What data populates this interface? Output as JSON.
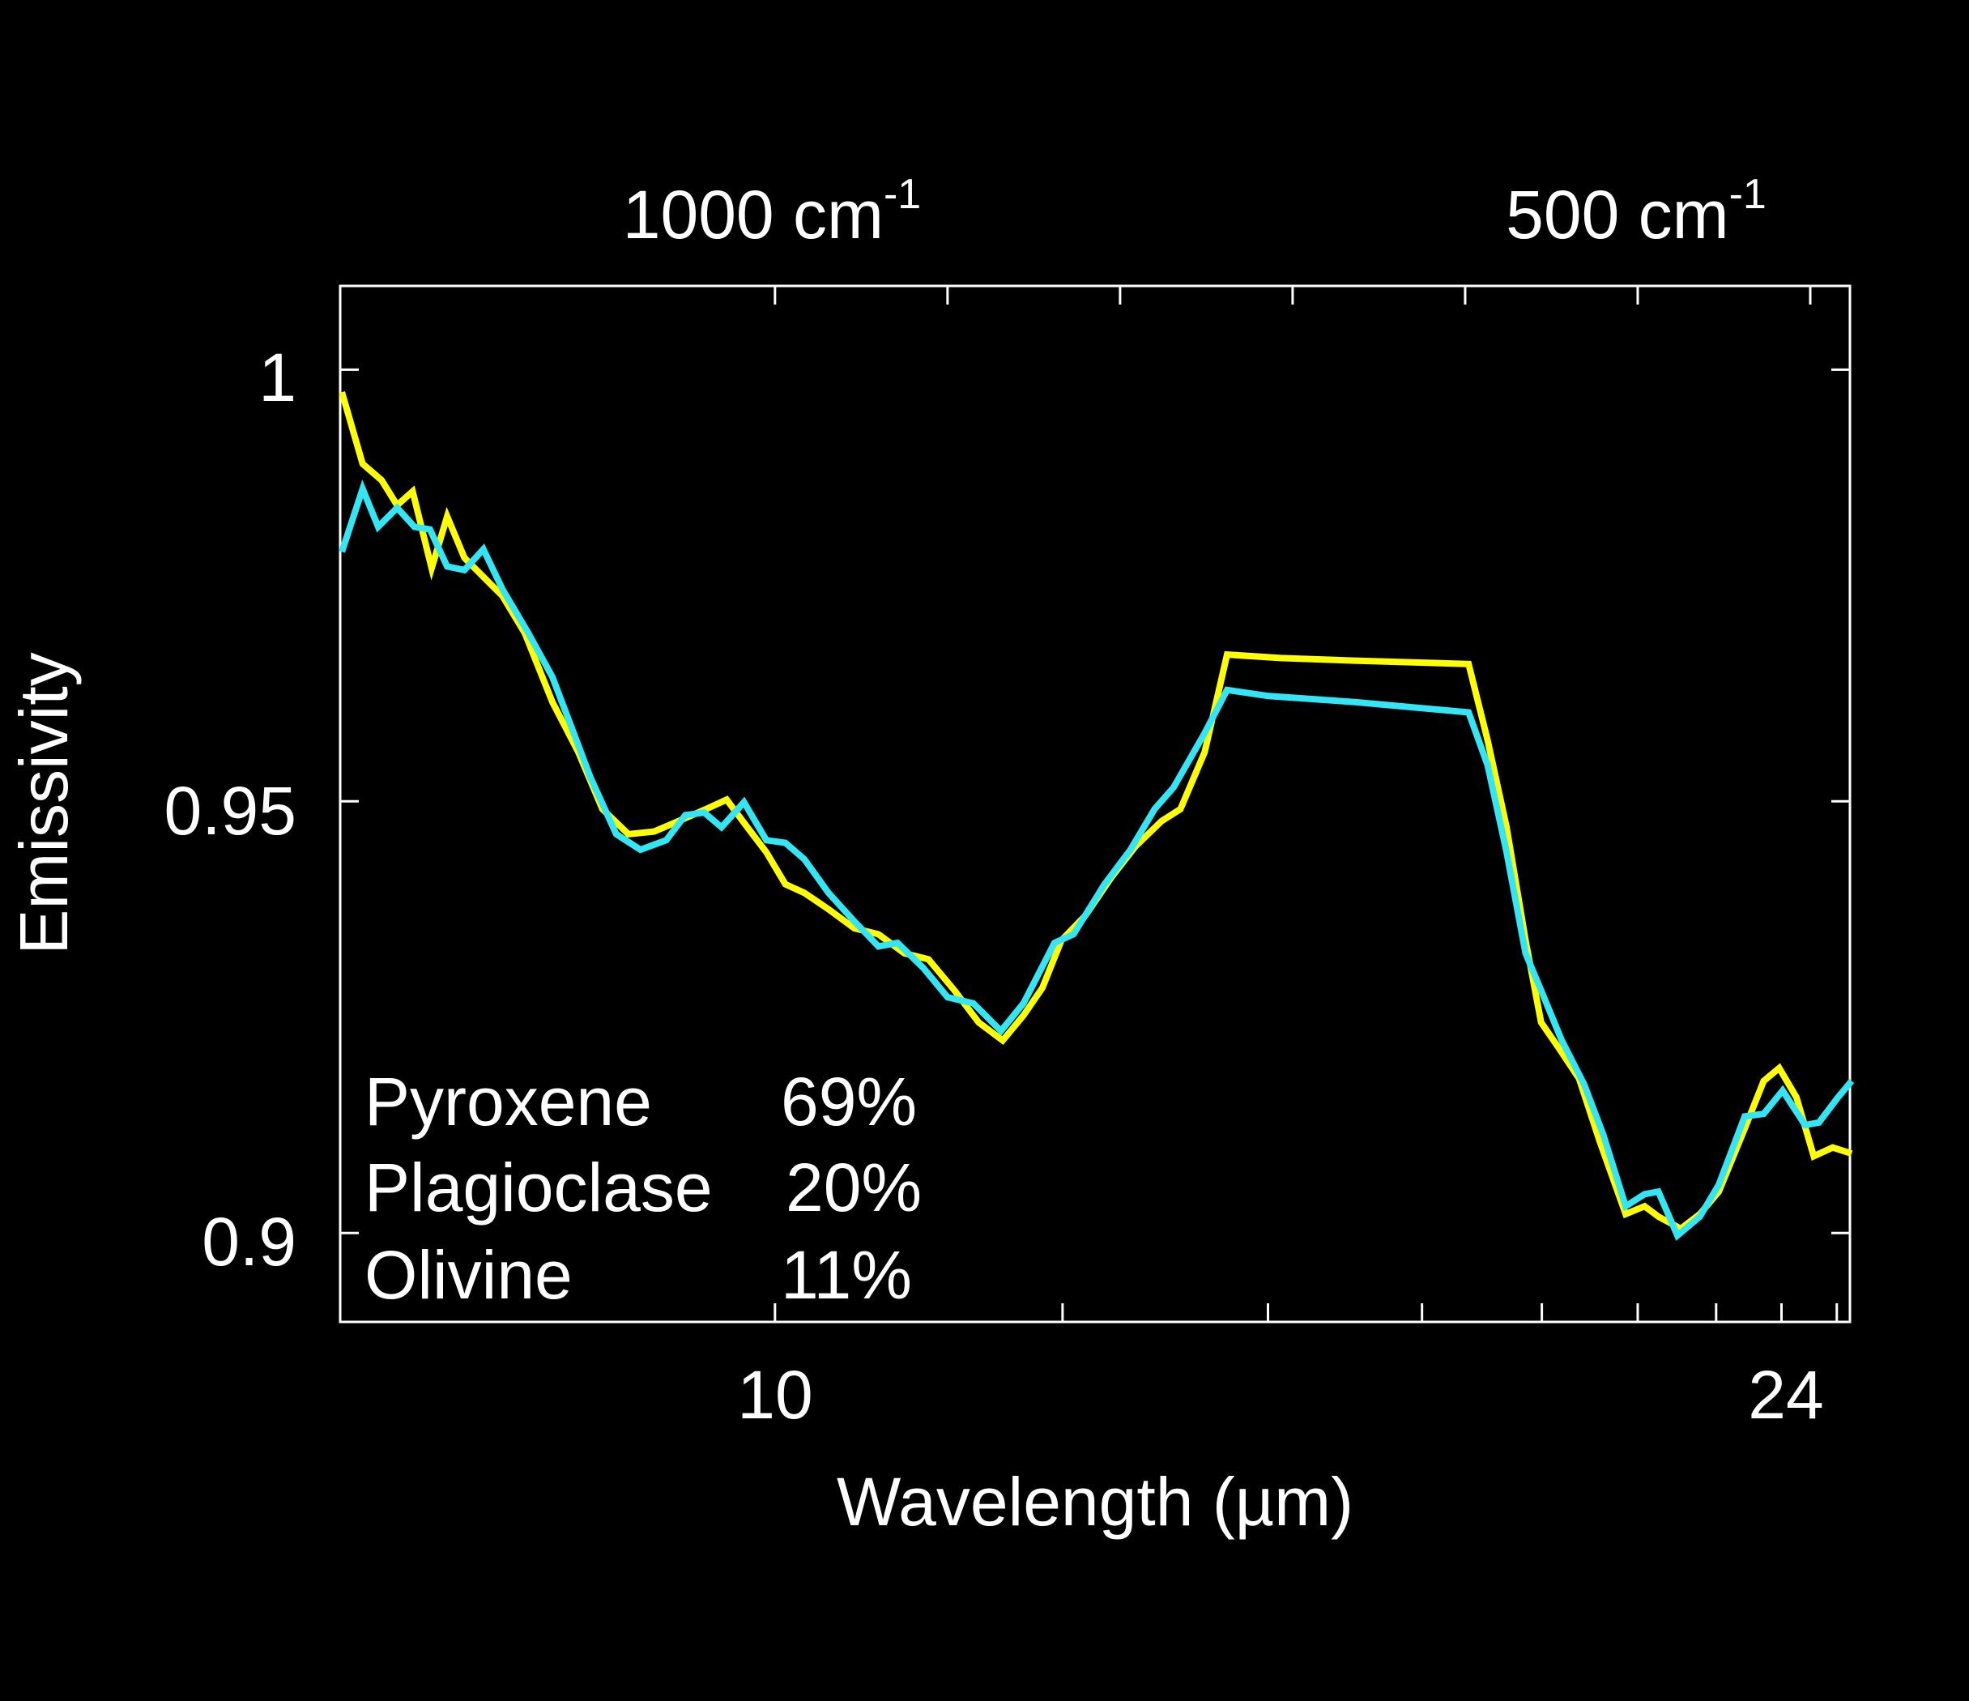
{
  "chart_data": {
    "type": "line",
    "title": "",
    "xlabel": "Wavelength (µm)",
    "ylabel": "Emissivity",
    "x_unit": "cm-1 (wavenumber; axis linear in wavenumber)",
    "xlim": [
      1252,
      377
    ],
    "ylim": [
      0.8897,
      1.0097
    ],
    "grid": false,
    "bottom_axis": {
      "tick_values_um": [
        10,
        12,
        14,
        16,
        18,
        20,
        22,
        24,
        26
      ],
      "tick_labels": [
        {
          "value": 10,
          "label": "10"
        },
        {
          "value": 24,
          "label": "24"
        }
      ]
    },
    "top_axis": {
      "tick_values_cm1": [
        1000,
        900,
        800,
        700,
        600,
        500,
        400
      ],
      "tick_labels": [
        {
          "value": 1000,
          "base": "1000 cm",
          "sup": "-1"
        },
        {
          "value": 500,
          "base": "500 cm",
          "sup": "-1"
        }
      ]
    },
    "y_ticks": [
      {
        "value": 1.0,
        "label": "1"
      },
      {
        "value": 0.95,
        "label": "0.95"
      },
      {
        "value": 0.9,
        "label": "0.9"
      }
    ],
    "legend": {
      "placement": "bottom-left",
      "entries": [
        {
          "name": "Pyroxene",
          "value": "69%"
        },
        {
          "name": "Plagioclase",
          "value": "20%"
        },
        {
          "name": "Olivine",
          "value": "11%"
        }
      ]
    },
    "series": [
      {
        "color": "#ffff00",
        "x": [
          1251,
          1239,
          1228,
          1219,
          1210,
          1199,
          1190,
          1180,
          1169,
          1158,
          1145,
          1129,
          1114,
          1100,
          1085,
          1070,
          1056,
          1040,
          1028,
          1016,
          1005,
          994,
          983,
          969,
          954,
          940,
          925,
          911,
          896,
          882,
          868,
          856,
          845,
          834,
          820,
          805,
          791,
          776,
          765,
          751,
          738,
          707,
          664,
          598,
          587,
          576,
          565,
          556,
          546,
          534,
          522,
          507,
          496,
          488,
          475,
          464,
          453,
          438,
          427,
          418,
          408,
          398,
          387,
          376
        ],
        "y": [
          0.9974,
          0.9891,
          0.9872,
          0.9843,
          0.9859,
          0.977,
          0.983,
          0.9782,
          0.976,
          0.9738,
          0.9695,
          0.9615,
          0.9557,
          0.9491,
          0.9462,
          0.9465,
          0.9477,
          0.9491,
          0.9502,
          0.947,
          0.9441,
          0.9404,
          0.9394,
          0.9375,
          0.9353,
          0.9346,
          0.9324,
          0.9317,
          0.9281,
          0.9244,
          0.9223,
          0.9252,
          0.9284,
          0.9339,
          0.9368,
          0.9412,
          0.9448,
          0.9477,
          0.9491,
          0.9557,
          0.967,
          0.9666,
          0.9663,
          0.9659,
          0.9571,
          0.947,
          0.9339,
          0.9244,
          0.9215,
          0.9179,
          0.9106,
          0.9022,
          0.9031,
          0.9019,
          0.9005,
          0.9022,
          0.9048,
          0.9121,
          0.9176,
          0.9191,
          0.9157,
          0.9089,
          0.9099,
          0.9092
        ]
      },
      {
        "color": "#33e6f5",
        "x": [
          1251,
          1239,
          1230,
          1219,
          1209,
          1200,
          1190,
          1180,
          1169,
          1158,
          1143,
          1129,
          1118,
          1107,
          1092,
          1078,
          1063,
          1052,
          1041,
          1031,
          1018,
          1005,
          994,
          983,
          969,
          954,
          940,
          929,
          914,
          900,
          885,
          869,
          856,
          838,
          827,
          809,
          794,
          780,
          769,
          751,
          738,
          714,
          664,
          598,
          587,
          576,
          565,
          556,
          544,
          531,
          520,
          507,
          496,
          488,
          477,
          464,
          453,
          438,
          427,
          416,
          403,
          395,
          384,
          376
        ],
        "y": [
          0.9789,
          0.9862,
          0.9818,
          0.984,
          0.9818,
          0.9815,
          0.9772,
          0.9768,
          0.9792,
          0.9746,
          0.9695,
          0.9644,
          0.9586,
          0.9528,
          0.9462,
          0.9444,
          0.9455,
          0.9484,
          0.9487,
          0.947,
          0.9499,
          0.9455,
          0.9452,
          0.9433,
          0.9394,
          0.9361,
          0.9332,
          0.9336,
          0.9307,
          0.9273,
          0.9266,
          0.9234,
          0.9266,
          0.9336,
          0.9346,
          0.9404,
          0.9444,
          0.9491,
          0.9516,
          0.9579,
          0.9629,
          0.9622,
          0.9615,
          0.9603,
          0.9542,
          0.9441,
          0.9324,
          0.9281,
          0.9223,
          0.9172,
          0.9114,
          0.9031,
          0.9045,
          0.9048,
          0.8997,
          0.9019,
          0.9056,
          0.9135,
          0.9138,
          0.9165,
          0.9125,
          0.9128,
          0.9157,
          0.9176
        ]
      }
    ]
  }
}
